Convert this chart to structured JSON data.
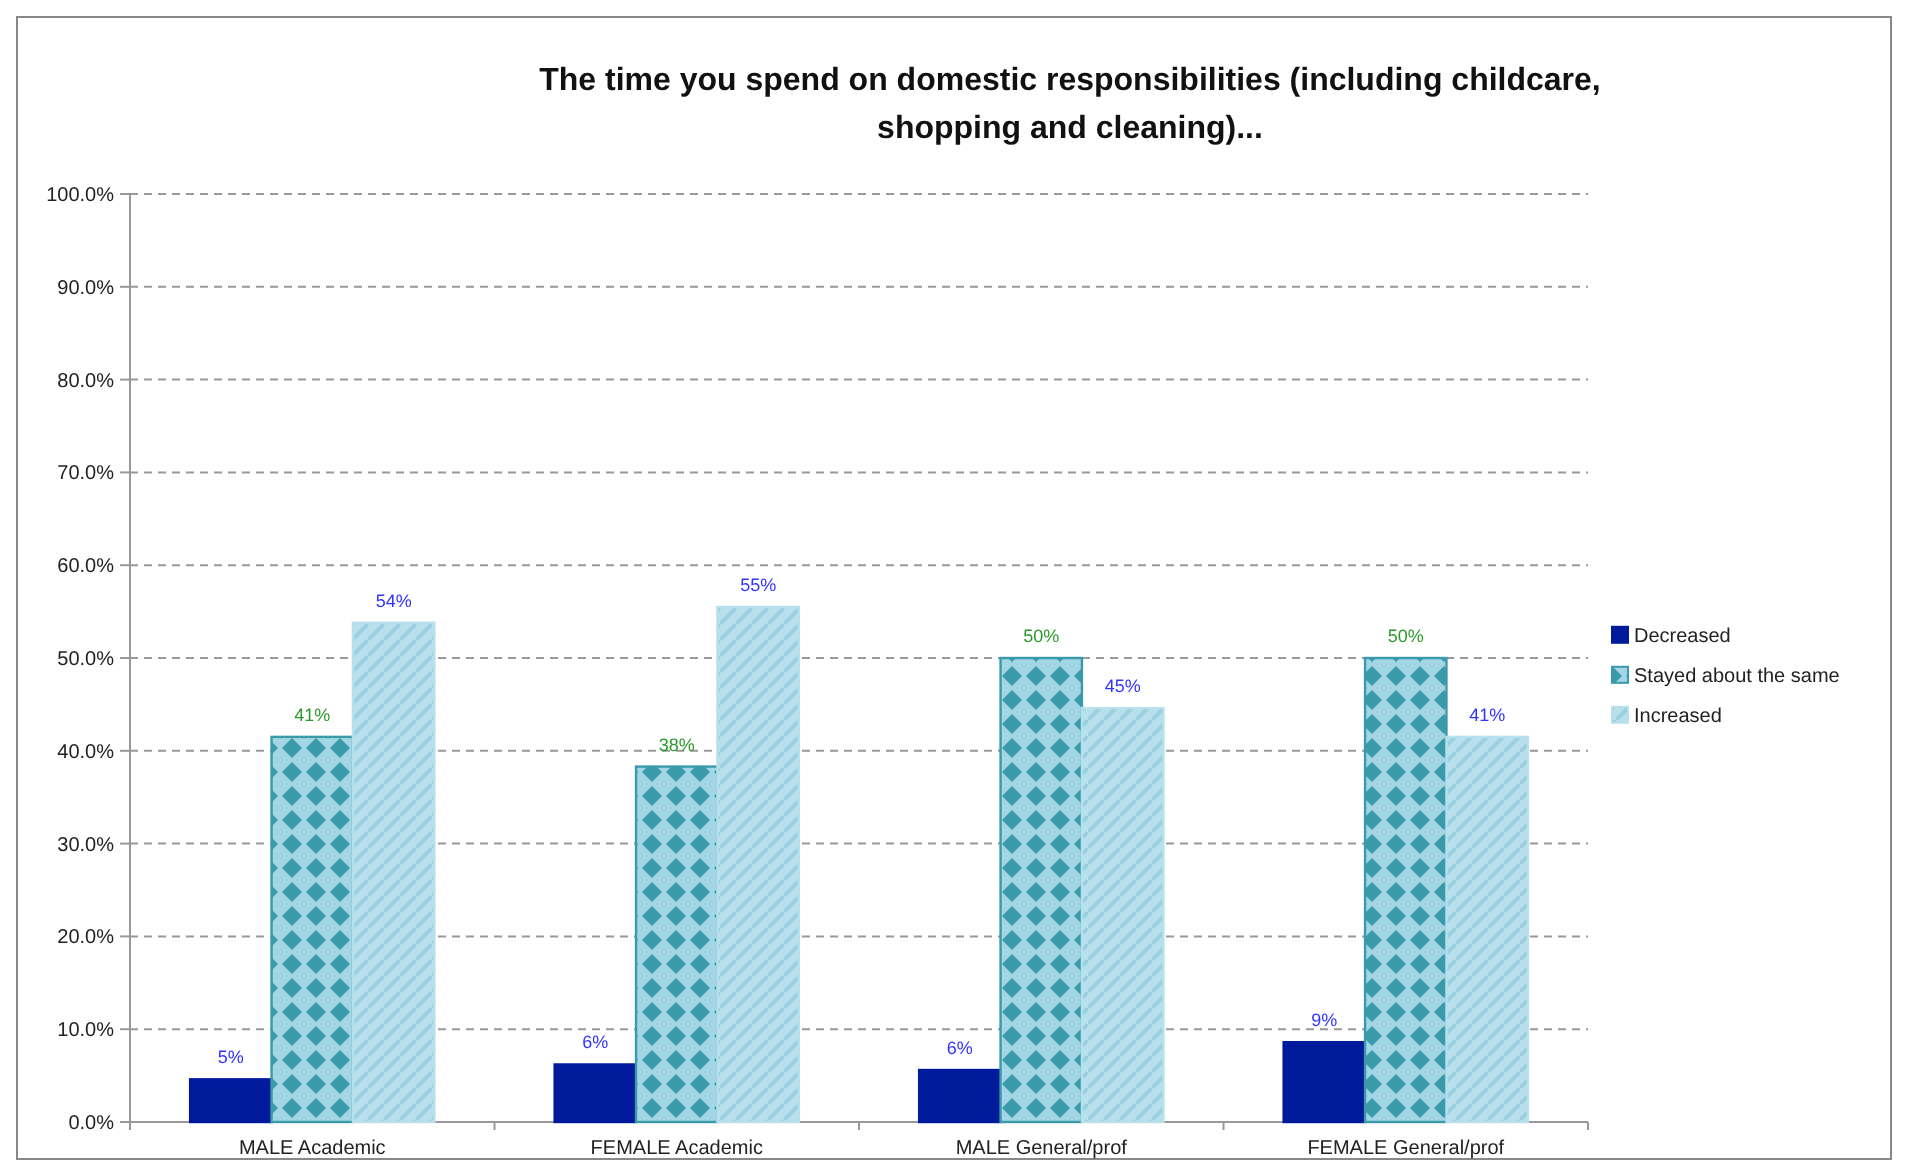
{
  "chart_data": {
    "type": "bar",
    "title": "The time you spend on domestic responsibilities (including childcare, shopping and cleaning)...",
    "categories": [
      "MALE Academic",
      "FEMALE Academic",
      "MALE General/prof",
      "FEMALE General/prof"
    ],
    "series": [
      {
        "name": "Decreased",
        "color": "#001a9c",
        "values": [
          4.6,
          6.2,
          5.6,
          8.6
        ],
        "value_labels": [
          "5%",
          "6%",
          "6%",
          "9%"
        ]
      },
      {
        "name": "Stayed about the same",
        "color": "#3a9aaa",
        "values": [
          41.5,
          38.3,
          50,
          50
        ],
        "value_labels": [
          "41%",
          "38%",
          "50%",
          "50%"
        ]
      },
      {
        "name": "Increased",
        "color": "#b8e0ec",
        "values": [
          53.8,
          55.5,
          44.6,
          41.5
        ],
        "value_labels": [
          "54%",
          "55%",
          "45%",
          "41%"
        ]
      }
    ],
    "ylim": [
      0,
      100
    ],
    "yticks": [
      {
        "value": 0,
        "label": "0.0%"
      },
      {
        "value": 10,
        "label": "10.0%"
      },
      {
        "value": 20,
        "label": "20.0%"
      },
      {
        "value": 30,
        "label": "30.0%"
      },
      {
        "value": 40,
        "label": "40.0%"
      },
      {
        "value": 50,
        "label": "50.0%"
      },
      {
        "value": 60,
        "label": "60.0%"
      },
      {
        "value": 70,
        "label": "70.0%"
      },
      {
        "value": 80,
        "label": "80.0%"
      },
      {
        "value": 90,
        "label": "90.0%"
      },
      {
        "value": 100,
        "label": "100.0%"
      }
    ],
    "grid": "y",
    "legend": "right"
  }
}
